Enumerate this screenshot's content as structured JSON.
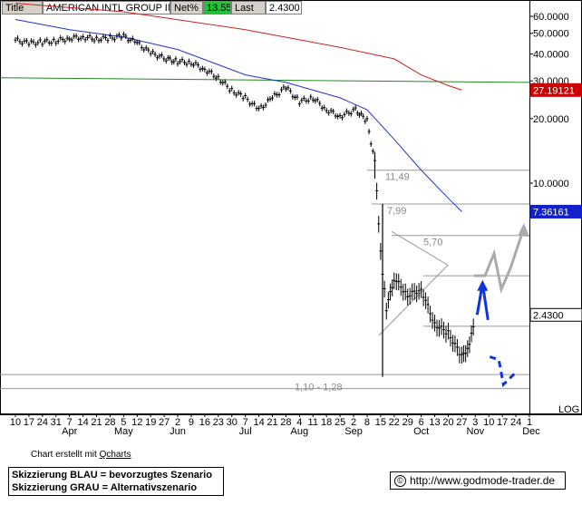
{
  "header": {
    "title_label": "Title",
    "title_value": "AMERICAN INTL GROUP INC",
    "net_label": "Net%",
    "net_value": "13.55",
    "last_label": "Last",
    "last_value": "2.4300"
  },
  "colors": {
    "price": "#000000",
    "ma_blue": "#2233cc",
    "ma_red": "#cc2222",
    "green_line": "#228822",
    "scenario_blue": "#1133dd",
    "scenario_grey": "#aaaaaa",
    "support_grey": "#999999",
    "label_box_blue": "#1122cc",
    "label_box_red": "#cc0000"
  },
  "chart_data": {
    "type": "line",
    "subtype": "daily-bar (OHLC) chart with moving averages and drawn scenarios",
    "y_scale": "log",
    "ylim": [
      0.6,
      65
    ],
    "y_ticks": [
      {
        "value": 60,
        "label": "60.0000"
      },
      {
        "value": 50,
        "label": "50.0000"
      },
      {
        "value": 40,
        "label": "40.0000"
      },
      {
        "value": 30,
        "label": "30.0000"
      },
      {
        "value": 20,
        "label": "20.0000"
      },
      {
        "value": 10,
        "label": "10.0000"
      }
    ],
    "y_scale_label": "LOG",
    "x_day_labels": [
      "10",
      "17",
      "24",
      "31",
      "7",
      "14",
      "21",
      "28",
      "5",
      "12",
      "19",
      "27",
      "2",
      "9",
      "16",
      "23",
      "30",
      "7",
      "14",
      "21",
      "28",
      "4",
      "11",
      "18",
      "25",
      "2",
      "8",
      "15",
      "22",
      "29",
      "6",
      "13",
      "20",
      "27",
      "3",
      "10",
      "17",
      "24",
      "1"
    ],
    "x_month_labels": [
      "Apr",
      "May",
      "Jun",
      "Jul",
      "Aug",
      "Sep",
      "Oct",
      "Nov",
      "Dec"
    ],
    "series": [
      {
        "name": "",
        "kind": "price",
        "x": [
          "2008-03-10",
          "2008-03-17",
          "2008-03-24",
          "2008-03-31",
          "2008-04-07",
          "2008-04-14",
          "2008-04-21",
          "2008-04-28",
          "2008-05-05",
          "2008-05-12",
          "2008-05-19",
          "2008-05-27",
          "2008-06-02",
          "2008-06-09",
          "2008-06-16",
          "2008-06-23",
          "2008-06-30",
          "2008-07-07",
          "2008-07-14",
          "2008-07-21",
          "2008-07-28",
          "2008-08-04",
          "2008-08-11",
          "2008-08-18",
          "2008-08-25",
          "2008-09-02",
          "2008-09-08",
          "2008-09-12",
          "2008-09-15",
          "2008-09-16",
          "2008-09-18",
          "2008-09-22",
          "2008-09-29",
          "2008-10-06",
          "2008-10-13",
          "2008-10-20",
          "2008-10-27",
          "2008-10-31",
          "2008-11-03"
        ],
        "y": [
          46.5,
          45,
          45.5,
          46,
          47.5,
          48,
          47,
          47.5,
          48.5,
          45,
          40.5,
          38,
          37,
          36.5,
          34,
          31,
          27,
          25,
          22,
          25,
          28,
          24,
          25,
          22,
          20.5,
          22,
          19.5,
          12.5,
          4.8,
          3.8,
          2.6,
          3.6,
          3.0,
          3.2,
          2.2,
          2.0,
          1.55,
          1.75,
          2.43
        ]
      },
      {
        "name": "",
        "kind": "moving-average",
        "x": [
          "2008-03-10",
          "2008-04-07",
          "2008-05-05",
          "2008-06-02",
          "2008-07-07",
          "2008-07-28",
          "2008-08-25",
          "2008-09-08",
          "2008-09-22",
          "2008-10-06",
          "2008-10-20",
          "2008-10-27"
        ],
        "y": [
          58,
          52,
          48,
          42,
          32,
          29.5,
          25,
          22,
          16,
          11.5,
          8.5,
          7.36
        ]
      },
      {
        "name": "",
        "kind": "moving-average",
        "x": [
          "2008-03-10",
          "2008-05-05",
          "2008-07-07",
          "2008-08-25",
          "2008-09-22",
          "2008-10-06",
          "2008-10-20",
          "2008-10-27"
        ],
        "y": [
          69,
          63,
          52,
          43,
          38,
          32,
          28.5,
          27.19
        ]
      },
      {
        "name": "",
        "kind": "horizontal-line",
        "x": [
          "2008-03-10",
          "2008-11-03"
        ],
        "y": [
          31,
          29.5
        ]
      }
    ],
    "right_axis_markers": [
      {
        "value": 27.19121,
        "label": "27.19121",
        "color": "red"
      },
      {
        "value": 7.36161,
        "label": "7.36161",
        "color": "blue"
      },
      {
        "value": 2.43,
        "label": "2.4300",
        "color": "white"
      }
    ],
    "annotations": [
      {
        "text": "11,49",
        "value": 11.49
      },
      {
        "text": "7,99",
        "value": 7.99
      },
      {
        "text": "5,70",
        "value": 5.7
      },
      {
        "text": "1,10 - 1,28",
        "value": 1.19
      }
    ],
    "support_levels": [
      11.49,
      7.99,
      5.7,
      3.7,
      2.15,
      1.28,
      1.1
    ],
    "scenarios": [
      {
        "kind": "blue-preferred",
        "points": [
          2.43,
          3.4,
          2.3,
          1.55,
          1.5,
          1.15,
          1.3
        ]
      },
      {
        "kind": "grey-alternative",
        "points": [
          3.7,
          3.7,
          4.7,
          3.2,
          4.0,
          6.2
        ]
      }
    ]
  },
  "footer": {
    "credit_prefix": "Chart erstellt mit ",
    "credit_link": "Qcharts",
    "legend_blue": "Skizzierung BLAU = bevorzugtes Szenario",
    "legend_grey": "Skizzierung GRAU = Alternativszenario",
    "copyright_symbol": "©",
    "url": "http://www.godmode-trader.de"
  }
}
